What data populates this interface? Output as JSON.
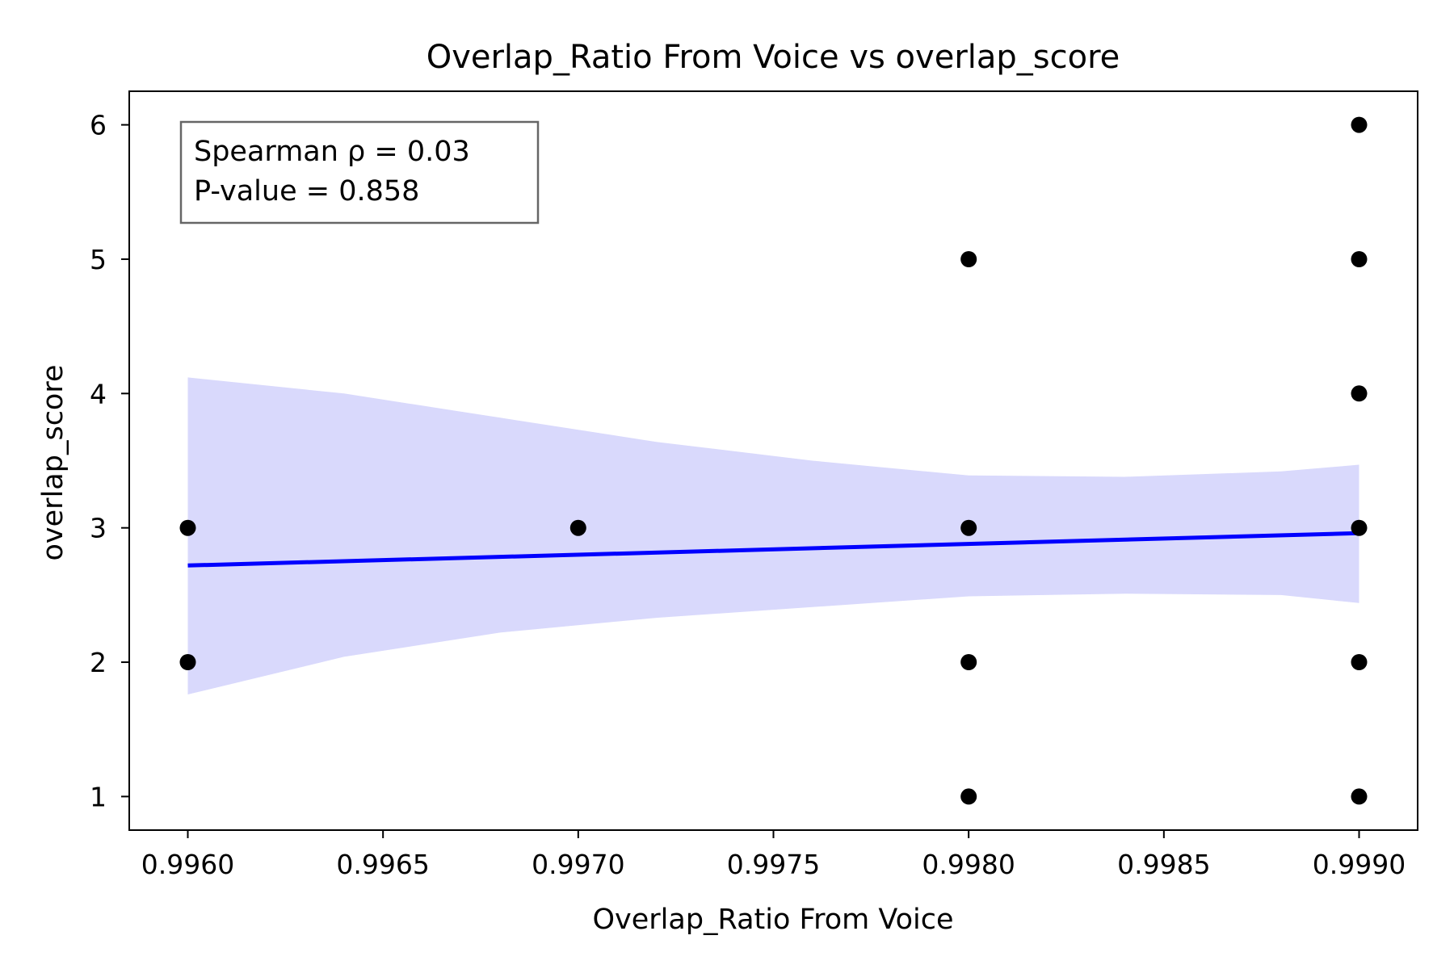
{
  "chart_data": {
    "type": "scatter",
    "title": "Overlap_Ratio From Voice vs overlap_score",
    "xlabel": "Overlap_Ratio From Voice",
    "ylabel": "overlap_score",
    "xlim": [
      0.99585,
      0.99915
    ],
    "ylim": [
      0.75,
      6.25
    ],
    "x_ticks": [
      "0.9960",
      "0.9965",
      "0.9970",
      "0.9975",
      "0.9980",
      "0.9985",
      "0.9990"
    ],
    "y_ticks": [
      "1",
      "2",
      "3",
      "4",
      "5",
      "6"
    ],
    "grid": false,
    "points": [
      {
        "x": 0.996,
        "y": 3
      },
      {
        "x": 0.996,
        "y": 2
      },
      {
        "x": 0.997,
        "y": 3
      },
      {
        "x": 0.998,
        "y": 5
      },
      {
        "x": 0.998,
        "y": 3
      },
      {
        "x": 0.998,
        "y": 2
      },
      {
        "x": 0.998,
        "y": 1
      },
      {
        "x": 0.999,
        "y": 6
      },
      {
        "x": 0.999,
        "y": 5
      },
      {
        "x": 0.999,
        "y": 4
      },
      {
        "x": 0.999,
        "y": 3
      },
      {
        "x": 0.999,
        "y": 2
      },
      {
        "x": 0.999,
        "y": 1
      }
    ],
    "regression": {
      "x": [
        0.996,
        0.999
      ],
      "y": [
        2.72,
        2.96
      ]
    },
    "confidence_band": {
      "x": [
        0.996,
        0.9964,
        0.9968,
        0.9972,
        0.9976,
        0.998,
        0.9984,
        0.9988,
        0.999
      ],
      "upper": [
        4.12,
        4.0,
        3.82,
        3.64,
        3.5,
        3.39,
        3.38,
        3.42,
        3.47
      ],
      "lower": [
        1.76,
        2.04,
        2.22,
        2.33,
        2.41,
        2.49,
        2.51,
        2.5,
        2.44
      ]
    },
    "annotation": {
      "lines": [
        "Spearman ρ = 0.03",
        "P-value = 0.858"
      ],
      "placement": "top-left"
    },
    "colors": {
      "points": "#000000",
      "regression_line": "#0000ff",
      "confidence_band": "#d9d9fc",
      "annotation_border": "#666666"
    }
  }
}
